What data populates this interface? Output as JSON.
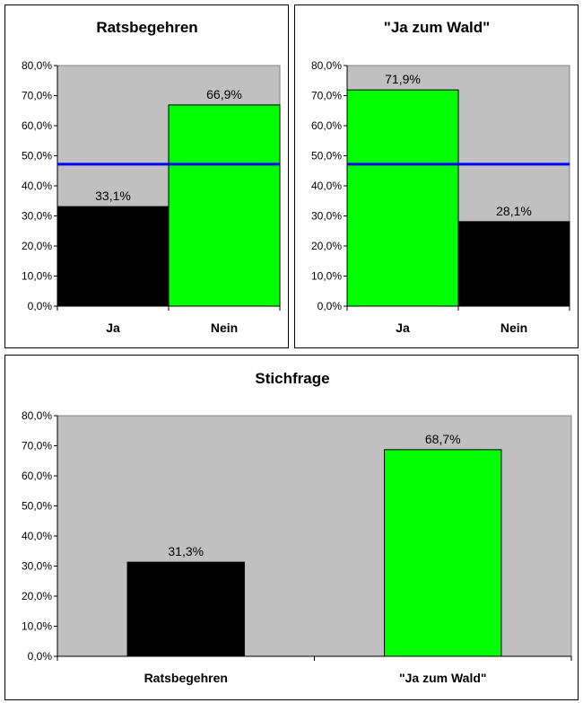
{
  "colors": {
    "plot_bg": "#c0c0c0",
    "ja_green": "#00ff00",
    "black": "#000000",
    "threshold": "#0000ff"
  },
  "chart_data": [
    {
      "type": "bar",
      "title": "Ratsbegehren",
      "categories": [
        "Ja",
        "Nein"
      ],
      "values": [
        33.1,
        66.9
      ],
      "data_labels": [
        "33,1%",
        "66,9%"
      ],
      "bar_colors": [
        "#000000",
        "#00ff00"
      ],
      "ylim": [
        0,
        80
      ],
      "yticks": [
        0,
        10,
        20,
        30,
        40,
        50,
        60,
        70,
        80
      ],
      "ytick_labels": [
        "0,0%",
        "10,0%",
        "20,0%",
        "30,0%",
        "40,0%",
        "50,0%",
        "60,0%",
        "70,0%",
        "80,0%"
      ],
      "threshold_line": 47.2,
      "grid": false,
      "legend": "none"
    },
    {
      "type": "bar",
      "title": "\"Ja zum Wald\"",
      "categories": [
        "Ja",
        "Nein"
      ],
      "values": [
        71.9,
        28.1
      ],
      "data_labels": [
        "71,9%",
        "28,1%"
      ],
      "bar_colors": [
        "#00ff00",
        "#000000"
      ],
      "ylim": [
        0,
        80
      ],
      "yticks": [
        0,
        10,
        20,
        30,
        40,
        50,
        60,
        70,
        80
      ],
      "ytick_labels": [
        "0,0%",
        "10,0%",
        "20,0%",
        "30,0%",
        "40,0%",
        "50,0%",
        "60,0%",
        "70,0%",
        "80,0%"
      ],
      "threshold_line": 47.2,
      "grid": false,
      "legend": "none"
    },
    {
      "type": "bar",
      "title": "Stichfrage",
      "categories": [
        "Ratsbegehren",
        "\"Ja zum Wald\""
      ],
      "values": [
        31.3,
        68.7
      ],
      "data_labels": [
        "31,3%",
        "68,7%"
      ],
      "bar_colors": [
        "#000000",
        "#00ff00"
      ],
      "ylim": [
        0,
        80
      ],
      "yticks": [
        0,
        10,
        20,
        30,
        40,
        50,
        60,
        70,
        80
      ],
      "ytick_labels": [
        "0,0%",
        "10,0%",
        "20,0%",
        "30,0%",
        "40,0%",
        "50,0%",
        "60,0%",
        "70,0%",
        "80,0%"
      ],
      "grid": false,
      "legend": "none"
    }
  ]
}
